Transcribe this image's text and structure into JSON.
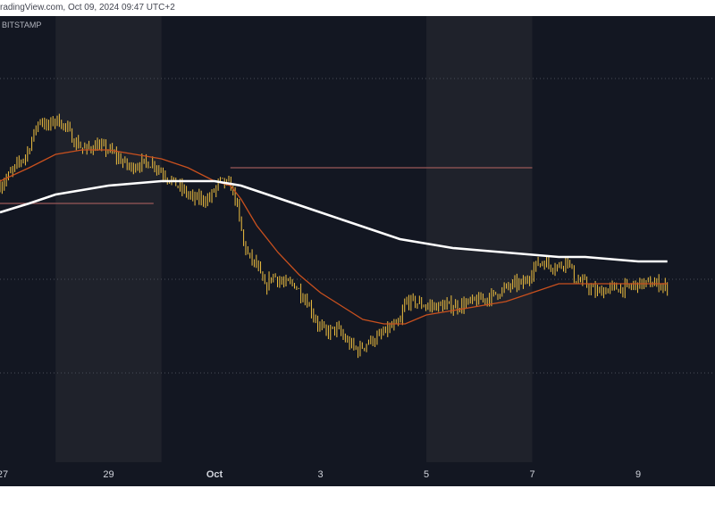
{
  "header": {
    "watermark_text": "radingView.com, Oct 09, 2024 09:47 UTC+2"
  },
  "colors": {
    "background": "#131722",
    "session_band": "#1f222b",
    "candle": "#f0c040",
    "ma_slow": "#ffffff",
    "ma_fast": "#c8501e",
    "level_line": "#9a5858",
    "dotted_line": "#4a4e58"
  },
  "chart_data": {
    "type": "candlestick",
    "exchange_label": "BITSTAMP",
    "x_ticks": [
      {
        "label": "27",
        "day": 27
      },
      {
        "label": "29",
        "day": 29
      },
      {
        "label": "Oct",
        "day": 31
      },
      {
        "label": "3",
        "day": 33
      },
      {
        "label": "5",
        "day": 35
      },
      {
        "label": "7",
        "day": 37
      },
      {
        "label": "9",
        "day": 39
      }
    ],
    "x_range_days": [
      26.95,
      40.45
    ],
    "shaded_sessions": [
      [
        28.0,
        30.0
      ],
      [
        35.0,
        37.0
      ]
    ],
    "y_range": [
      0,
      100
    ],
    "price_path": [
      [
        26.95,
        62
      ],
      [
        27.1,
        64
      ],
      [
        27.3,
        67
      ],
      [
        27.45,
        69
      ],
      [
        27.6,
        74
      ],
      [
        27.7,
        77
      ],
      [
        27.85,
        75
      ],
      [
        28.0,
        77
      ],
      [
        28.2,
        75
      ],
      [
        28.35,
        72
      ],
      [
        28.55,
        70
      ],
      [
        28.75,
        71
      ],
      [
        29.0,
        70
      ],
      [
        29.2,
        68
      ],
      [
        29.4,
        66
      ],
      [
        29.6,
        67
      ],
      [
        29.85,
        67
      ],
      [
        30.0,
        65
      ],
      [
        30.2,
        63
      ],
      [
        30.4,
        61
      ],
      [
        30.6,
        59
      ],
      [
        30.9,
        59
      ],
      [
        31.1,
        63
      ],
      [
        31.3,
        62
      ],
      [
        31.4,
        59
      ],
      [
        31.55,
        49
      ],
      [
        31.65,
        46
      ],
      [
        31.8,
        44
      ],
      [
        31.95,
        39
      ],
      [
        32.1,
        42
      ],
      [
        32.3,
        40
      ],
      [
        32.5,
        40
      ],
      [
        32.75,
        36
      ],
      [
        32.95,
        31
      ],
      [
        33.1,
        29
      ],
      [
        33.3,
        30
      ],
      [
        33.5,
        27
      ],
      [
        33.7,
        25
      ],
      [
        33.9,
        27
      ],
      [
        34.1,
        28
      ],
      [
        34.3,
        30
      ],
      [
        34.5,
        31
      ],
      [
        34.6,
        36
      ],
      [
        34.75,
        36
      ],
      [
        35.0,
        35
      ],
      [
        35.3,
        35
      ],
      [
        35.6,
        35
      ],
      [
        35.9,
        36
      ],
      [
        36.2,
        37
      ],
      [
        36.5,
        39
      ],
      [
        36.7,
        40
      ],
      [
        36.85,
        40
      ],
      [
        37.05,
        44
      ],
      [
        37.2,
        45
      ],
      [
        37.35,
        44
      ],
      [
        37.55,
        44
      ],
      [
        37.65,
        46
      ],
      [
        37.8,
        41
      ],
      [
        38.0,
        40
      ],
      [
        38.2,
        38
      ],
      [
        38.5,
        39
      ],
      [
        38.8,
        39
      ],
      [
        39.0,
        40
      ],
      [
        39.2,
        40
      ],
      [
        39.4,
        40
      ],
      [
        39.55,
        39
      ]
    ],
    "ma_fast": [
      [
        26.95,
        63
      ],
      [
        27.5,
        66
      ],
      [
        28.0,
        69
      ],
      [
        28.5,
        70
      ],
      [
        29.0,
        70
      ],
      [
        29.5,
        69
      ],
      [
        30.0,
        68
      ],
      [
        30.5,
        66
      ],
      [
        31.0,
        63
      ],
      [
        31.3,
        62
      ],
      [
        31.5,
        59
      ],
      [
        31.8,
        53
      ],
      [
        32.2,
        47
      ],
      [
        32.6,
        42
      ],
      [
        33.0,
        38
      ],
      [
        33.4,
        35
      ],
      [
        33.8,
        32
      ],
      [
        34.2,
        31
      ],
      [
        34.6,
        31
      ],
      [
        35.0,
        33
      ],
      [
        35.5,
        34
      ],
      [
        36.0,
        35
      ],
      [
        36.5,
        36
      ],
      [
        37.0,
        38
      ],
      [
        37.5,
        40
      ],
      [
        38.0,
        40
      ],
      [
        38.5,
        40
      ],
      [
        39.0,
        40
      ],
      [
        39.55,
        40
      ]
    ],
    "ma_slow": [
      [
        26.95,
        56
      ],
      [
        27.5,
        58
      ],
      [
        28.0,
        60
      ],
      [
        28.5,
        61
      ],
      [
        29.0,
        62
      ],
      [
        29.5,
        62.5
      ],
      [
        30.0,
        63
      ],
      [
        30.5,
        63
      ],
      [
        31.0,
        63
      ],
      [
        31.5,
        62
      ],
      [
        32.0,
        60
      ],
      [
        32.5,
        58
      ],
      [
        33.0,
        56
      ],
      [
        33.5,
        54
      ],
      [
        34.0,
        52
      ],
      [
        34.5,
        50
      ],
      [
        35.0,
        49
      ],
      [
        35.5,
        48
      ],
      [
        36.0,
        47.5
      ],
      [
        36.5,
        47
      ],
      [
        37.0,
        46.5
      ],
      [
        37.5,
        46
      ],
      [
        38.0,
        46
      ],
      [
        38.5,
        45.5
      ],
      [
        39.0,
        45
      ],
      [
        39.55,
        45
      ]
    ],
    "level_lines": [
      {
        "x_from": 31.3,
        "x_to": 37.0,
        "y": 66
      },
      {
        "x_from": 26.95,
        "x_to": 29.85,
        "y": 58
      }
    ],
    "dotted_levels": [
      86,
      41,
      20
    ]
  }
}
